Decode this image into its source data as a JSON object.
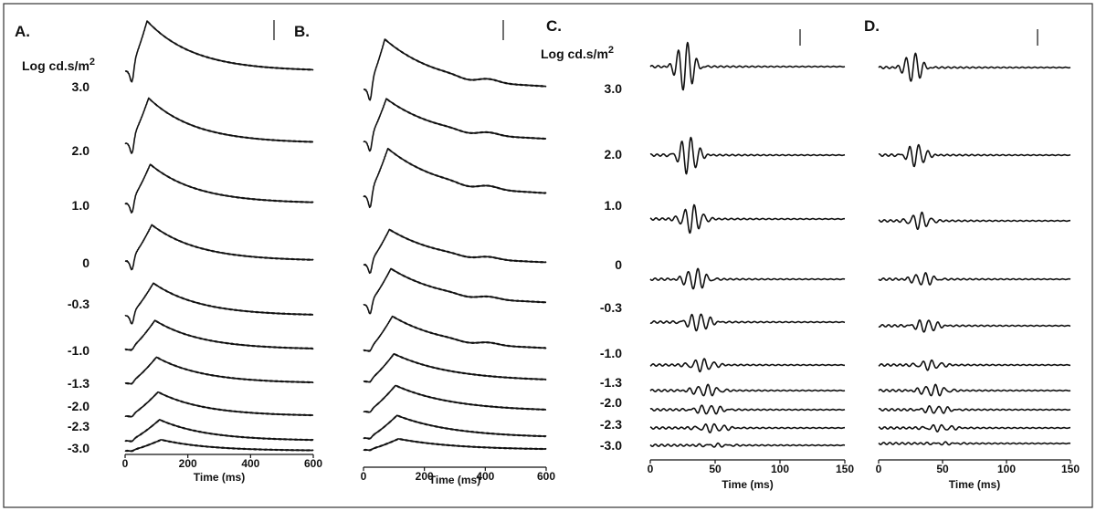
{
  "chart_data": [
    {
      "panel": "A.",
      "type": "line",
      "unit_label": "Log cd.s/m",
      "unit_exponent": "2",
      "levels": [
        "3.0",
        "2.0",
        "1.0",
        "0",
        "-0.3",
        "-1.0",
        "-1.3",
        "-2.0",
        "-2.3",
        "-3.0"
      ],
      "xlabel": "Time (ms)",
      "xlim": [
        0,
        600
      ],
      "xticks": [
        "0",
        "200",
        "400",
        "600"
      ],
      "waveform": "scotopic"
    },
    {
      "panel": "B.",
      "type": "line",
      "levels": [
        "3.0",
        "2.0",
        "1.0",
        "0",
        "-0.3",
        "-1.0",
        "-1.3",
        "-2.0",
        "-2.3",
        "-3.0"
      ],
      "xlabel": "Time (ms)",
      "xlim": [
        0,
        600
      ],
      "xticks": [
        "0",
        "200",
        "400",
        "600"
      ],
      "waveform": "scotopic"
    },
    {
      "panel": "C.",
      "type": "line",
      "unit_label": "Log cd.s/m",
      "unit_exponent": "2",
      "levels": [
        "3.0",
        "2.0",
        "1.0",
        "0",
        "-0.3",
        "-1.0",
        "-1.3",
        "-2.0",
        "-2.3",
        "-3.0"
      ],
      "xlabel": "Time (ms)",
      "xlim": [
        0,
        150
      ],
      "xticks": [
        "0",
        "50",
        "100",
        "150"
      ],
      "waveform": "oscillatory"
    },
    {
      "panel": "D.",
      "type": "line",
      "levels": [
        "3.0",
        "2.0",
        "1.0",
        "0",
        "-0.3",
        "-1.0",
        "-1.3",
        "-2.0",
        "-2.3",
        "-3.0"
      ],
      "xlabel": "Time (ms)",
      "xlim": [
        0,
        150
      ],
      "xticks": [
        "0",
        "50",
        "100",
        "150"
      ],
      "waveform": "oscillatory"
    }
  ]
}
